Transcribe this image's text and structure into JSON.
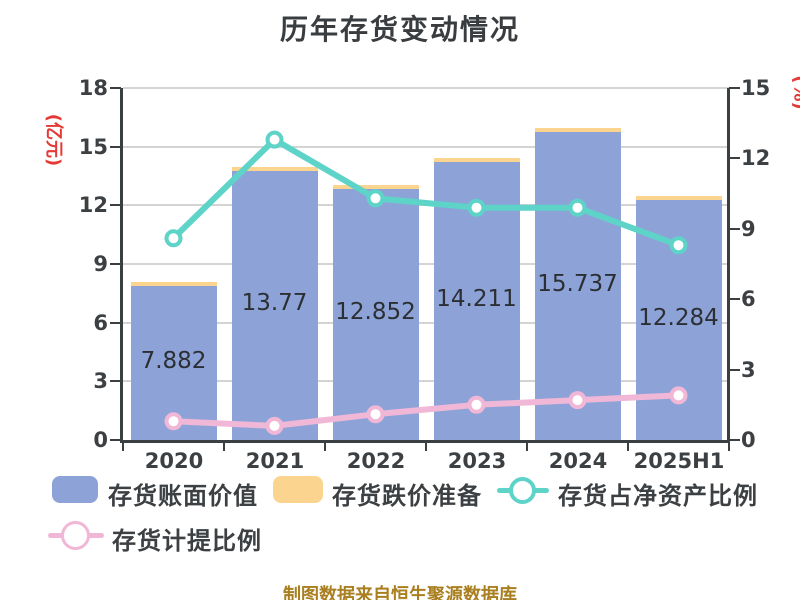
{
  "title": "历年存货变动情况",
  "footer": "制图数据来自恒生聚源数据库",
  "axes": {
    "left": {
      "unit": "(亿元)",
      "ticks": [
        0,
        3,
        6,
        9,
        12,
        15,
        18
      ],
      "max": 18
    },
    "right": {
      "unit": "(%)",
      "ticks": [
        0,
        3,
        6,
        9,
        12,
        15
      ],
      "max": 15
    }
  },
  "legend": {
    "items": [
      {
        "label": "存货账面价值",
        "key": "book_value",
        "marker": "bar",
        "color": "#8DA3D7"
      },
      {
        "label": "存货跌价准备",
        "key": "provision",
        "marker": "bar",
        "color": "#FBD58F"
      },
      {
        "label": "存货占净资产比例",
        "key": "net_asset_ratio",
        "marker": "line",
        "color": "#5ED3C8"
      },
      {
        "label": "存货计提比例",
        "key": "provision_ratio",
        "marker": "line",
        "color": "#F2B9D8"
      }
    ]
  },
  "colors": {
    "bar_book_value": "#8DA3D7",
    "bar_provision": "#FBD58F",
    "line_net_asset_ratio": "#5ED3C8",
    "line_provision_ratio": "#F1B7D6",
    "axis_text": "#3C4043",
    "unit_label": "#E53935",
    "footer_text": "#A97F1F",
    "gridline": "#D4D4D4",
    "bar_value_label": "#2B2F33"
  },
  "chart_data": {
    "type": "bar",
    "title": "历年存货变动情况",
    "categories": [
      "2020",
      "2021",
      "2022",
      "2023",
      "2024",
      "2025H1"
    ],
    "series": [
      {
        "name": "存货账面价值",
        "key": "book_value",
        "type": "bar",
        "axis": "left",
        "values": [
          7.882,
          13.77,
          12.852,
          14.211,
          15.737,
          12.284
        ],
        "labels": [
          "7.882",
          "13.77",
          "12.852",
          "14.211",
          "15.737",
          "12.284"
        ],
        "color": "#8DA3D7"
      },
      {
        "name": "存货跌价准备",
        "key": "provision",
        "type": "bar",
        "axis": "left",
        "stacked_on": "book_value",
        "values": [
          0.2,
          0.2,
          0.2,
          0.2,
          0.2,
          0.2
        ],
        "color": "#FBD58F"
      },
      {
        "name": "存货占净资产比例",
        "key": "net_asset_ratio",
        "type": "line",
        "axis": "right",
        "values": [
          8.6,
          12.8,
          10.3,
          9.9,
          9.9,
          8.3
        ],
        "color": "#5ED3C8"
      },
      {
        "name": "存货计提比例",
        "key": "provision_ratio",
        "type": "line",
        "axis": "right",
        "values": [
          0.8,
          0.6,
          1.1,
          1.5,
          1.7,
          1.9
        ],
        "color": "#F1B7D6"
      }
    ],
    "xlabel": "",
    "ylabel_left": "(亿元)",
    "ylabel_right": "(%)",
    "ylim_left": [
      0,
      18
    ],
    "ylim_right": [
      0,
      15
    ],
    "grid": true,
    "legend_position": "bottom"
  }
}
